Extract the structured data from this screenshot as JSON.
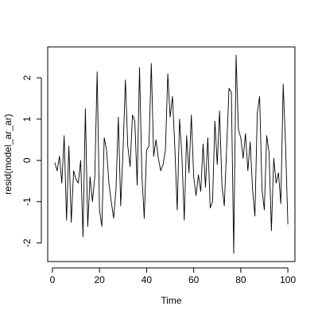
{
  "chart_data": {
    "type": "line",
    "title": "",
    "xlabel": "Time",
    "ylabel": "resid(model_ar_ar)",
    "xlim": [
      -2,
      103
    ],
    "ylim": [
      -2.45,
      2.75
    ],
    "xticks": [
      0,
      20,
      40,
      60,
      80,
      100
    ],
    "xtick_labels": [
      "0",
      "20",
      "40",
      "60",
      "80",
      "100"
    ],
    "yticks": [
      -2,
      -1,
      0,
      1,
      2
    ],
    "ytick_labels": [
      "-2",
      "-1",
      "0",
      "1",
      "2"
    ],
    "grid": false,
    "legend": "none",
    "line_color": "#000000",
    "series": [
      {
        "x": [
          1,
          2,
          3,
          4,
          5,
          6,
          7,
          8,
          9,
          10,
          11,
          12,
          13,
          14,
          15,
          16,
          17,
          18,
          19,
          20,
          21,
          22,
          23,
          24,
          25,
          26,
          27,
          28,
          29,
          30,
          31,
          32,
          33,
          34,
          35,
          36,
          37,
          38,
          39,
          40,
          41,
          42,
          43,
          44,
          45,
          46,
          47,
          48,
          49,
          50,
          51,
          52,
          53,
          54,
          55,
          56,
          57,
          58,
          59,
          60,
          61,
          62,
          63,
          64,
          65,
          66,
          67,
          68,
          69,
          70,
          71,
          72,
          73,
          74,
          75,
          76,
          77,
          78,
          79,
          80,
          81,
          82,
          83,
          84,
          85,
          86,
          87,
          88,
          89,
          90,
          91,
          92,
          93,
          94,
          95,
          96,
          97,
          98,
          99,
          100
        ],
        "values": [
          -0.05,
          -0.25,
          0.1,
          -0.55,
          0.6,
          -1.45,
          0.35,
          -1.5,
          -0.25,
          -0.45,
          -0.55,
          0.0,
          -1.85,
          1.25,
          -1.6,
          -0.4,
          -1.0,
          -0.4,
          2.15,
          -1.2,
          -1.6,
          0.55,
          0.25,
          -0.55,
          -1.0,
          -1.4,
          -0.7,
          1.05,
          -1.1,
          0.25,
          1.95,
          0.35,
          -0.15,
          1.1,
          0.95,
          -0.6,
          2.25,
          -0.35,
          -1.4,
          0.25,
          0.35,
          2.35,
          0.1,
          0.5,
          0.05,
          -0.25,
          -0.1,
          0.25,
          2.1,
          1.05,
          1.55,
          0.3,
          -1.2,
          1.0,
          0.1,
          -1.45,
          0.6,
          -0.3,
          1.1,
          -0.4,
          -0.85,
          -0.35,
          -0.75,
          0.4,
          -0.65,
          0.55,
          -1.15,
          -1.0,
          0.95,
          -0.1,
          1.2,
          -0.6,
          -1.1,
          0.3,
          1.75,
          1.65,
          -2.25,
          2.55,
          0.75,
          0.55,
          0.05,
          0.65,
          -0.25,
          0.45,
          -0.7,
          -1.35,
          1.15,
          1.55,
          -0.7,
          -1.2,
          0.6,
          0.2,
          -1.7,
          0.05,
          -0.55,
          -0.3,
          -1.05,
          1.85,
          0.4,
          -1.55
        ]
      }
    ]
  }
}
